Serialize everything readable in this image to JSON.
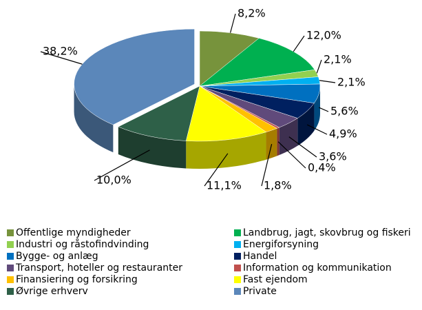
{
  "chart_data": {
    "type": "pie",
    "categories": [
      "Offentlige myndigheder",
      "Landbrug, jagt, skovbrug og fiskeri",
      "Industri og råstofindvinding",
      "Energiforsyning",
      "Bygge- og anlæg",
      "Handel",
      "Transport, hoteller og restauranter",
      "Information og kommunikation",
      "Finansiering og forsikring",
      "Fast ejendom",
      "Øvrige erhverv",
      "Private"
    ],
    "values": [
      8.2,
      12.0,
      2.1,
      2.1,
      5.6,
      4.9,
      3.6,
      0.4,
      1.8,
      11.1,
      10.0,
      38.2
    ],
    "value_labels": [
      "8,2%",
      "12,0%",
      "2,1%",
      "2,1%",
      "5,6%",
      "4,9%",
      "3,6%",
      "0,4%",
      "1,8%",
      "11,1%",
      "10,0%",
      "38,2%"
    ],
    "colors": [
      "#77933c",
      "#00b050",
      "#92d050",
      "#00b0f0",
      "#0070c0",
      "#002060",
      "#604a7b",
      "#c0504d",
      "#ffc000",
      "#ffff00",
      "#2e6048",
      "#5b87ba"
    ],
    "legend": "bottom"
  }
}
